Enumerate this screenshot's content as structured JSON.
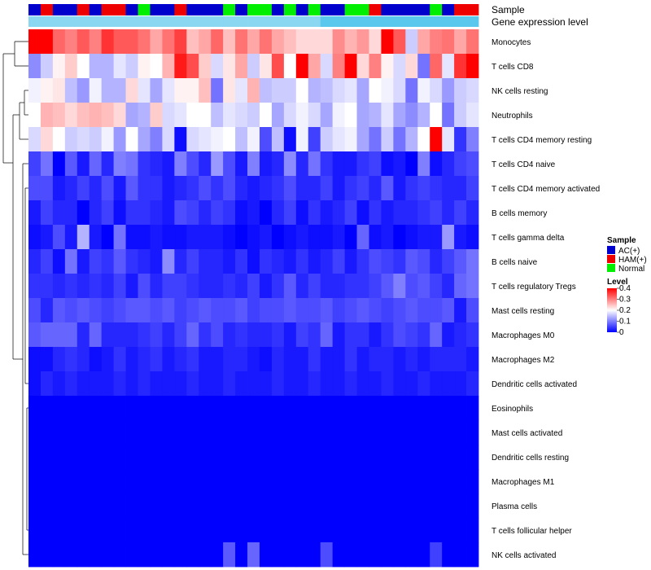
{
  "chart_data": {
    "type": "heatmap",
    "annotation_labels": [
      "Sample",
      "Gene expression level"
    ],
    "rows": [
      "Monocytes",
      "T cells CD8",
      "NK cells resting",
      "Neutrophils",
      "T cells CD4 memory resting",
      "T cells CD4 naive",
      "T cells CD4 memory activated",
      "B cells memory",
      "T cells gamma delta",
      "B cells naive",
      "T cells regulatory  Tregs",
      "Mast cells resting",
      "Macrophages M0",
      "Macrophages M2",
      "Dendritic cells activated",
      "Eosinophils",
      "Mast cells activated",
      "Dendritic cells resting",
      "Macrophages M1",
      "Plasma cells",
      "T cells follicular helper",
      "NK cells activated"
    ],
    "sample_groups": [
      "AC(+)",
      "HAM(+)",
      "AC(+)",
      "AC(+)",
      "HAM(+)",
      "AC(+)",
      "HAM(+)",
      "HAM(+)",
      "AC(+)",
      "Normal",
      "AC(+)",
      "AC(+)",
      "HAM(+)",
      "AC(+)",
      "AC(+)",
      "AC(+)",
      "Normal",
      "AC(+)",
      "Normal",
      "Normal",
      "AC(+)",
      "Normal",
      "AC(+)",
      "Normal",
      "AC(+)",
      "AC(+)",
      "Normal",
      "Normal",
      "HAM(+)",
      "AC(+)",
      "AC(+)",
      "AC(+)",
      "AC(+)",
      "Normal",
      "AC(+)",
      "HAM(+)",
      "HAM(+)"
    ],
    "expression_level": [
      0.35,
      0.35,
      0.35,
      0.35,
      0.35,
      0.35,
      0.35,
      0.35,
      0.35,
      0.35,
      0.35,
      0.35,
      0.35,
      0.35,
      0.35,
      0.35,
      0.35,
      0.35,
      0.35,
      0.35,
      0.35,
      0.35,
      0.35,
      0.35,
      0.55,
      0.55,
      0.55,
      0.55,
      0.55,
      0.55,
      0.55,
      0.55,
      0.55,
      0.55,
      0.55,
      0.55,
      0.55
    ],
    "values": {
      "Monocytes": [
        0.4,
        0.4,
        0.32,
        0.3,
        0.33,
        0.3,
        0.36,
        0.33,
        0.33,
        0.31,
        0.27,
        0.31,
        0.35,
        0.25,
        0.27,
        0.32,
        0.25,
        0.31,
        0.27,
        0.31,
        0.27,
        0.25,
        0.23,
        0.23,
        0.23,
        0.29,
        0.26,
        0.28,
        0.23,
        0.4,
        0.33,
        0.16,
        0.27,
        0.3,
        0.31,
        0.27,
        0.31
      ],
      "T cells CD8": [
        0.11,
        0.16,
        0.21,
        0.24,
        0.2,
        0.14,
        0.14,
        0.18,
        0.16,
        0.21,
        0.2,
        0.26,
        0.38,
        0.34,
        0.24,
        0.17,
        0.22,
        0.27,
        0.16,
        0.22,
        0.34,
        0.2,
        0.4,
        0.27,
        0.17,
        0.3,
        0.4,
        0.23,
        0.3,
        0.21,
        0.17,
        0.23,
        0.09,
        0.32,
        0.18,
        0.36,
        0.4
      ],
      "NK cells resting": [
        0.19,
        0.21,
        0.22,
        0.15,
        0.12,
        0.19,
        0.14,
        0.14,
        0.23,
        0.18,
        0.13,
        0.18,
        0.21,
        0.21,
        0.25,
        0.09,
        0.22,
        0.18,
        0.26,
        0.15,
        0.16,
        0.16,
        0.2,
        0.14,
        0.15,
        0.17,
        0.18,
        0.13,
        0.2,
        0.19,
        0.17,
        0.09,
        0.19,
        0.17,
        0.12,
        0.16,
        0.17
      ],
      "Neutrophils": [
        0.2,
        0.26,
        0.25,
        0.23,
        0.25,
        0.26,
        0.25,
        0.23,
        0.13,
        0.14,
        0.24,
        0.17,
        0.18,
        0.2,
        0.2,
        0.15,
        0.18,
        0.17,
        0.16,
        0.2,
        0.13,
        0.17,
        0.19,
        0.17,
        0.13,
        0.19,
        0.2,
        0.13,
        0.14,
        0.18,
        0.13,
        0.11,
        0.14,
        0.2,
        0.09,
        0.16,
        0.18
      ],
      "T cells CD4 memory resting": [
        0.17,
        0.23,
        0.2,
        0.16,
        0.17,
        0.16,
        0.19,
        0.12,
        0.2,
        0.13,
        0.1,
        0.17,
        0.01,
        0.17,
        0.18,
        0.19,
        0.2,
        0.15,
        0.19,
        0.06,
        0.15,
        0.01,
        0.19,
        0.05,
        0.16,
        0.18,
        0.19,
        0.13,
        0.09,
        0.16,
        0.09,
        0.14,
        0.2,
        0.4,
        0.18,
        0.04,
        0.1
      ],
      "T cells CD4 naive": [
        0.05,
        0.09,
        0.0,
        0.07,
        0.02,
        0.08,
        0.03,
        0.1,
        0.09,
        0.04,
        0.03,
        0.02,
        0.1,
        0.06,
        0.03,
        0.12,
        0.06,
        0.02,
        0.1,
        0.02,
        0.03,
        0.11,
        0.03,
        0.09,
        0.04,
        0.02,
        0.02,
        0.04,
        0.05,
        0.01,
        0.02,
        0.0,
        0.1,
        0.01,
        0.03,
        0.05,
        0.06
      ],
      "T cells CD4 memory activated": [
        0.06,
        0.06,
        0.02,
        0.03,
        0.05,
        0.03,
        0.06,
        0.02,
        0.07,
        0.04,
        0.04,
        0.02,
        0.03,
        0.04,
        0.06,
        0.04,
        0.06,
        0.03,
        0.02,
        0.03,
        0.04,
        0.06,
        0.03,
        0.03,
        0.05,
        0.02,
        0.04,
        0.05,
        0.03,
        0.07,
        0.02,
        0.04,
        0.05,
        0.04,
        0.03,
        0.03,
        0.05
      ],
      "B cells memory": [
        0.02,
        0.05,
        0.03,
        0.03,
        0.0,
        0.03,
        0.05,
        0.01,
        0.04,
        0.04,
        0.03,
        0.02,
        0.06,
        0.05,
        0.03,
        0.05,
        0.04,
        0.01,
        0.02,
        0.0,
        0.03,
        0.05,
        0.01,
        0.04,
        0.02,
        0.03,
        0.05,
        0.01,
        0.04,
        0.02,
        0.03,
        0.03,
        0.04,
        0.05,
        0.03,
        0.05,
        0.03
      ],
      "T cells gamma delta": [
        0.01,
        0.02,
        0.06,
        0.02,
        0.14,
        0.02,
        0.0,
        0.09,
        0.01,
        0.01,
        0.02,
        0.01,
        0.01,
        0.02,
        0.02,
        0.02,
        0.01,
        0.0,
        0.01,
        0.02,
        0.0,
        0.01,
        0.02,
        0.01,
        0.01,
        0.02,
        0.0,
        0.08,
        0.01,
        0.02,
        0.0,
        0.01,
        0.02,
        0.02,
        0.12,
        0.02,
        0.01
      ],
      "B cells naive": [
        0.03,
        0.05,
        0.01,
        0.09,
        0.02,
        0.05,
        0.04,
        0.07,
        0.04,
        0.03,
        0.02,
        0.11,
        0.03,
        0.05,
        0.03,
        0.03,
        0.02,
        0.04,
        0.01,
        0.04,
        0.03,
        0.02,
        0.04,
        0.02,
        0.03,
        0.05,
        0.02,
        0.04,
        0.06,
        0.05,
        0.04,
        0.07,
        0.06,
        0.03,
        0.05,
        0.07,
        0.09
      ],
      "T cells regulatory  Tregs": [
        0.04,
        0.04,
        0.03,
        0.04,
        0.03,
        0.04,
        0.03,
        0.05,
        0.02,
        0.06,
        0.03,
        0.05,
        0.05,
        0.04,
        0.03,
        0.03,
        0.04,
        0.03,
        0.05,
        0.02,
        0.04,
        0.07,
        0.03,
        0.05,
        0.03,
        0.03,
        0.04,
        0.04,
        0.05,
        0.07,
        0.1,
        0.06,
        0.07,
        0.05,
        0.03,
        0.08,
        0.09
      ],
      "Mast cells resting": [
        0.06,
        0.03,
        0.07,
        0.06,
        0.07,
        0.06,
        0.05,
        0.06,
        0.07,
        0.07,
        0.06,
        0.07,
        0.05,
        0.06,
        0.07,
        0.06,
        0.06,
        0.07,
        0.05,
        0.06,
        0.06,
        0.07,
        0.06,
        0.06,
        0.07,
        0.05,
        0.06,
        0.07,
        0.06,
        0.05,
        0.06,
        0.07,
        0.06,
        0.06,
        0.07,
        0.02,
        0.06
      ],
      "Macrophages M0": [
        0.07,
        0.08,
        0.08,
        0.08,
        0.03,
        0.08,
        0.03,
        0.03,
        0.03,
        0.04,
        0.05,
        0.03,
        0.05,
        0.08,
        0.04,
        0.06,
        0.03,
        0.04,
        0.03,
        0.03,
        0.04,
        0.02,
        0.05,
        0.04,
        0.08,
        0.02,
        0.04,
        0.04,
        0.02,
        0.04,
        0.06,
        0.05,
        0.04,
        0.08,
        0.02,
        0.03,
        0.04
      ],
      "Macrophages M2": [
        0.01,
        0.01,
        0.03,
        0.04,
        0.03,
        0.01,
        0.02,
        0.04,
        0.02,
        0.03,
        0.04,
        0.02,
        0.03,
        0.04,
        0.02,
        0.02,
        0.03,
        0.03,
        0.02,
        0.01,
        0.03,
        0.02,
        0.02,
        0.04,
        0.02,
        0.02,
        0.04,
        0.02,
        0.03,
        0.03,
        0.02,
        0.03,
        0.02,
        0.03,
        0.03,
        0.03,
        0.02
      ],
      "Dendritic cells activated": [
        0.01,
        0.03,
        0.02,
        0.03,
        0.02,
        0.02,
        0.02,
        0.03,
        0.02,
        0.03,
        0.02,
        0.02,
        0.02,
        0.03,
        0.02,
        0.02,
        0.03,
        0.02,
        0.02,
        0.02,
        0.03,
        0.02,
        0.02,
        0.03,
        0.02,
        0.02,
        0.03,
        0.02,
        0.02,
        0.03,
        0.02,
        0.02,
        0.03,
        0.02,
        0.02,
        0.02,
        0.03
      ],
      "Eosinophils": [
        0,
        0,
        0,
        0,
        0,
        0,
        0,
        0,
        0,
        0,
        0,
        0,
        0,
        0,
        0,
        0,
        0,
        0,
        0,
        0,
        0,
        0,
        0,
        0,
        0,
        0,
        0,
        0,
        0,
        0,
        0,
        0,
        0,
        0,
        0,
        0,
        0
      ],
      "Mast cells activated": [
        0,
        0,
        0,
        0,
        0,
        0,
        0,
        0,
        0,
        0,
        0,
        0,
        0,
        0,
        0,
        0,
        0,
        0,
        0,
        0,
        0,
        0,
        0,
        0,
        0,
        0,
        0,
        0,
        0,
        0,
        0,
        0,
        0,
        0,
        0,
        0,
        0
      ],
      "Dendritic cells resting": [
        0,
        0,
        0,
        0,
        0,
        0,
        0,
        0,
        0,
        0,
        0,
        0,
        0,
        0,
        0,
        0,
        0,
        0,
        0,
        0,
        0,
        0,
        0,
        0,
        0,
        0,
        0,
        0,
        0,
        0,
        0,
        0,
        0,
        0,
        0,
        0,
        0
      ],
      "Macrophages M1": [
        0,
        0,
        0,
        0,
        0,
        0,
        0,
        0,
        0,
        0,
        0,
        0,
        0,
        0,
        0,
        0,
        0,
        0,
        0,
        0,
        0,
        0,
        0,
        0,
        0,
        0,
        0,
        0,
        0,
        0,
        0,
        0,
        0,
        0,
        0,
        0,
        0
      ],
      "Plasma cells": [
        0,
        0,
        0,
        0,
        0,
        0,
        0,
        0,
        0,
        0,
        0,
        0,
        0,
        0,
        0,
        0,
        0,
        0,
        0,
        0,
        0,
        0,
        0,
        0,
        0,
        0,
        0,
        0,
        0,
        0,
        0,
        0,
        0,
        0,
        0,
        0,
        0
      ],
      "T cells follicular helper": [
        0,
        0,
        0,
        0,
        0,
        0,
        0,
        0,
        0,
        0,
        0,
        0,
        0,
        0,
        0,
        0,
        0,
        0,
        0,
        0,
        0,
        0,
        0,
        0,
        0,
        0,
        0,
        0,
        0,
        0,
        0,
        0,
        0,
        0,
        0,
        0,
        0
      ],
      "NK cells activated": [
        0,
        0,
        0,
        0,
        0,
        0,
        0,
        0,
        0,
        0,
        0,
        0,
        0,
        0,
        0,
        0,
        0.07,
        0,
        0.08,
        0,
        0,
        0,
        0,
        0,
        0.06,
        0,
        0,
        0,
        0,
        0,
        0,
        0,
        0,
        0.05,
        0,
        0,
        0
      ]
    },
    "color_scale": {
      "min": 0,
      "max": 0.4,
      "low_color": "#0000ff",
      "mid_color": "#ffffff",
      "high_color": "#ff0000",
      "mid_value": 0.2
    },
    "legend": {
      "sample": {
        "title": "Sample",
        "entries": [
          {
            "label": "AC(+)",
            "color": "#0000cc"
          },
          {
            "label": "HAM(+)",
            "color": "#ee0000"
          },
          {
            "label": "Normal",
            "color": "#00ee00"
          }
        ]
      },
      "level": {
        "title": "Level",
        "ticks": [
          "0.4",
          "0.3",
          "0.2",
          "0.1",
          "0"
        ],
        "tick_values": [
          0.4,
          0.3,
          0.2,
          0.1,
          0
        ]
      },
      "placement": "right"
    },
    "annotation_colors": {
      "expr_low": "#8ad7f2",
      "expr_high": "#5ac8ec"
    }
  }
}
